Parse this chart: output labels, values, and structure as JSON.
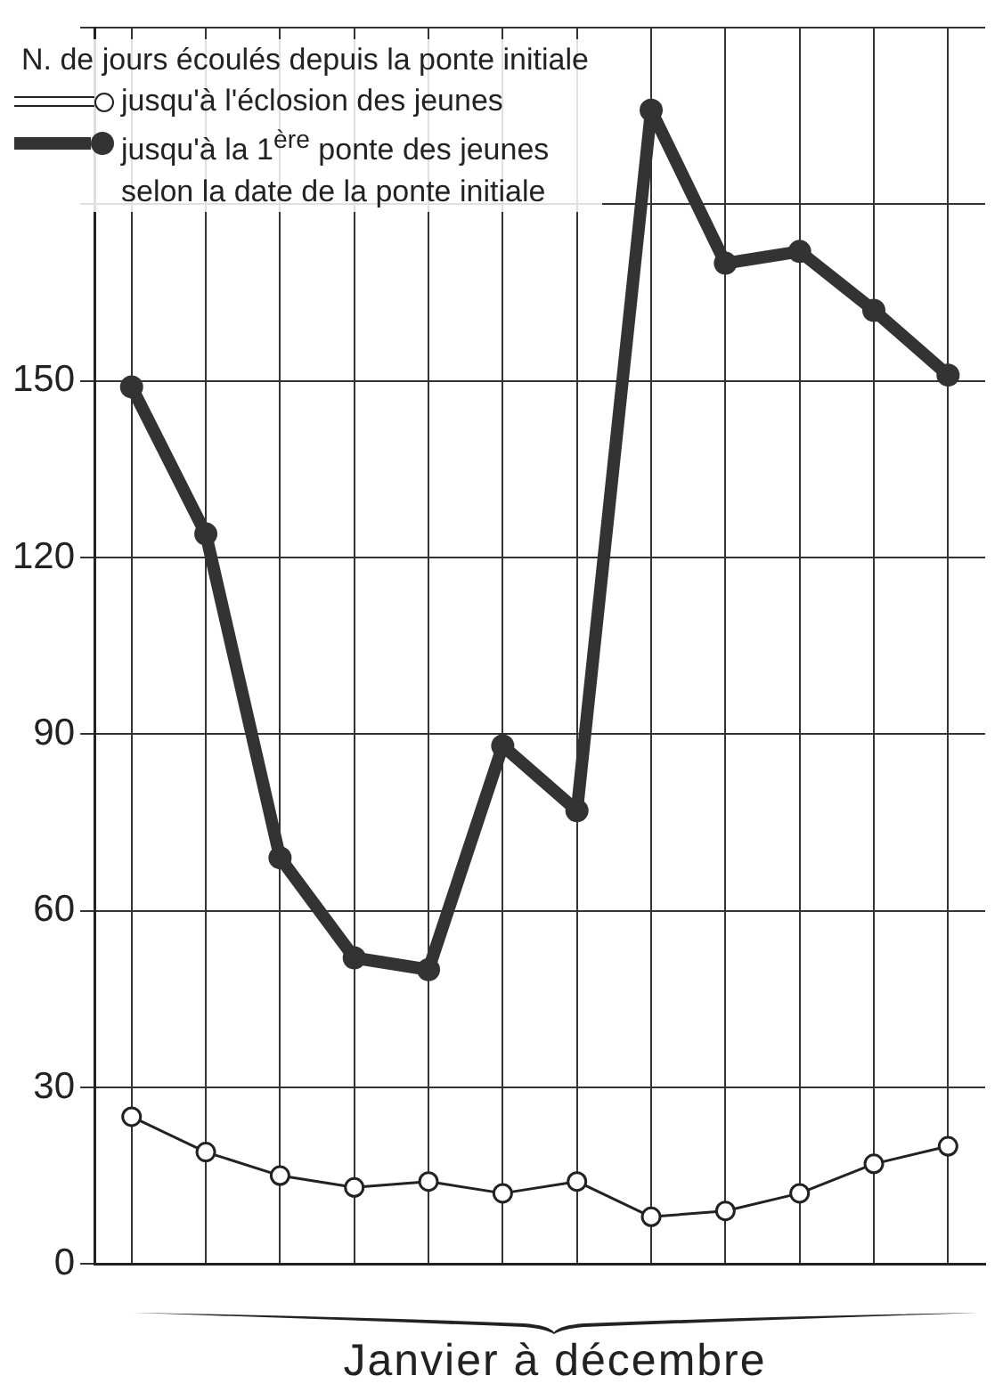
{
  "chart_data": {
    "type": "line",
    "legend_title": "N. de jours écoulés depuis la ponte initiale",
    "xlabel": "Janvier à décembre",
    "categories": [
      null,
      null,
      null,
      null,
      null,
      null,
      null,
      null,
      null,
      null,
      null,
      null
    ],
    "series": [
      {
        "name": "jusqu'à l'éclosion des jeunes",
        "color": "#222222",
        "values": [
          25,
          19,
          15,
          13,
          14,
          12,
          14,
          8,
          9,
          12,
          17,
          20
        ]
      },
      {
        "name": "jusqu'à la 1$^{ère}$ ponte des jeunes selon la date de la ponte initiale",
        "color": "#333333",
        "values": [
          149,
          124,
          69,
          52,
          50,
          88,
          77,
          196,
          170,
          172,
          162,
          151
        ]
      }
    ],
    "ylim": [
      0,
      210
    ],
    "yticks": [
      0,
      30,
      60,
      90,
      120,
      150,
      {
        "value": 180,
        "label": null
      },
      {
        "value": 210,
        "label": null
      }
    ],
    "grid": true,
    "marker": "circle",
    "legend": "top left"
  }
}
